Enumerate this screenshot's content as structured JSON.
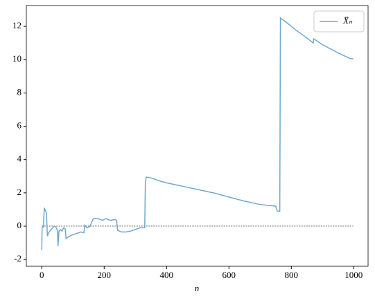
{
  "chart_data": {
    "type": "line",
    "x_label": "n",
    "x": [
      0,
      1,
      3,
      5,
      8,
      12,
      15,
      18,
      22,
      26,
      30,
      35,
      40,
      45,
      50,
      52,
      55,
      60,
      65,
      70,
      75,
      78,
      85,
      95,
      110,
      125,
      135,
      138,
      145,
      155,
      165,
      180,
      195,
      205,
      220,
      235,
      240,
      243,
      255,
      270,
      285,
      300,
      315,
      330,
      332,
      335,
      350,
      380,
      400,
      450,
      500,
      550,
      600,
      650,
      700,
      750,
      755,
      763,
      765,
      780,
      800,
      820,
      850,
      870,
      872,
      900,
      950,
      985,
      990,
      999
    ],
    "series": [
      {
        "name": "X̄ₙ",
        "color": "#6fa8cf",
        "values": [
          -1.45,
          -0.1,
          0.0,
          -0.05,
          1.1,
          0.9,
          0.8,
          -0.6,
          -0.4,
          -0.3,
          -0.2,
          -0.1,
          0.0,
          -0.05,
          -0.25,
          -1.2,
          -0.3,
          -0.2,
          -0.3,
          -0.1,
          -0.15,
          -0.75,
          -0.65,
          -0.55,
          -0.45,
          -0.35,
          -0.4,
          0.05,
          -0.1,
          0.0,
          0.45,
          0.45,
          0.35,
          0.45,
          0.35,
          0.4,
          0.35,
          -0.25,
          -0.35,
          -0.35,
          -0.3,
          -0.2,
          -0.1,
          -0.1,
          2.6,
          2.95,
          2.9,
          2.7,
          2.6,
          2.4,
          2.2,
          2.0,
          1.75,
          1.5,
          1.3,
          1.2,
          0.9,
          0.9,
          12.5,
          12.3,
          12.0,
          11.7,
          11.3,
          11.0,
          11.25,
          10.9,
          10.4,
          10.1,
          10.05,
          10.05
        ]
      }
    ],
    "hline": 0,
    "xlim": [
      -49.5,
      1046
    ],
    "ylim": [
      -2.41,
      13.25
    ],
    "xticks": [
      0,
      200,
      400,
      600,
      800,
      1000
    ],
    "yticks": [
      -2,
      0,
      2,
      4,
      6,
      8,
      10,
      12
    ],
    "legend": "upper right"
  }
}
